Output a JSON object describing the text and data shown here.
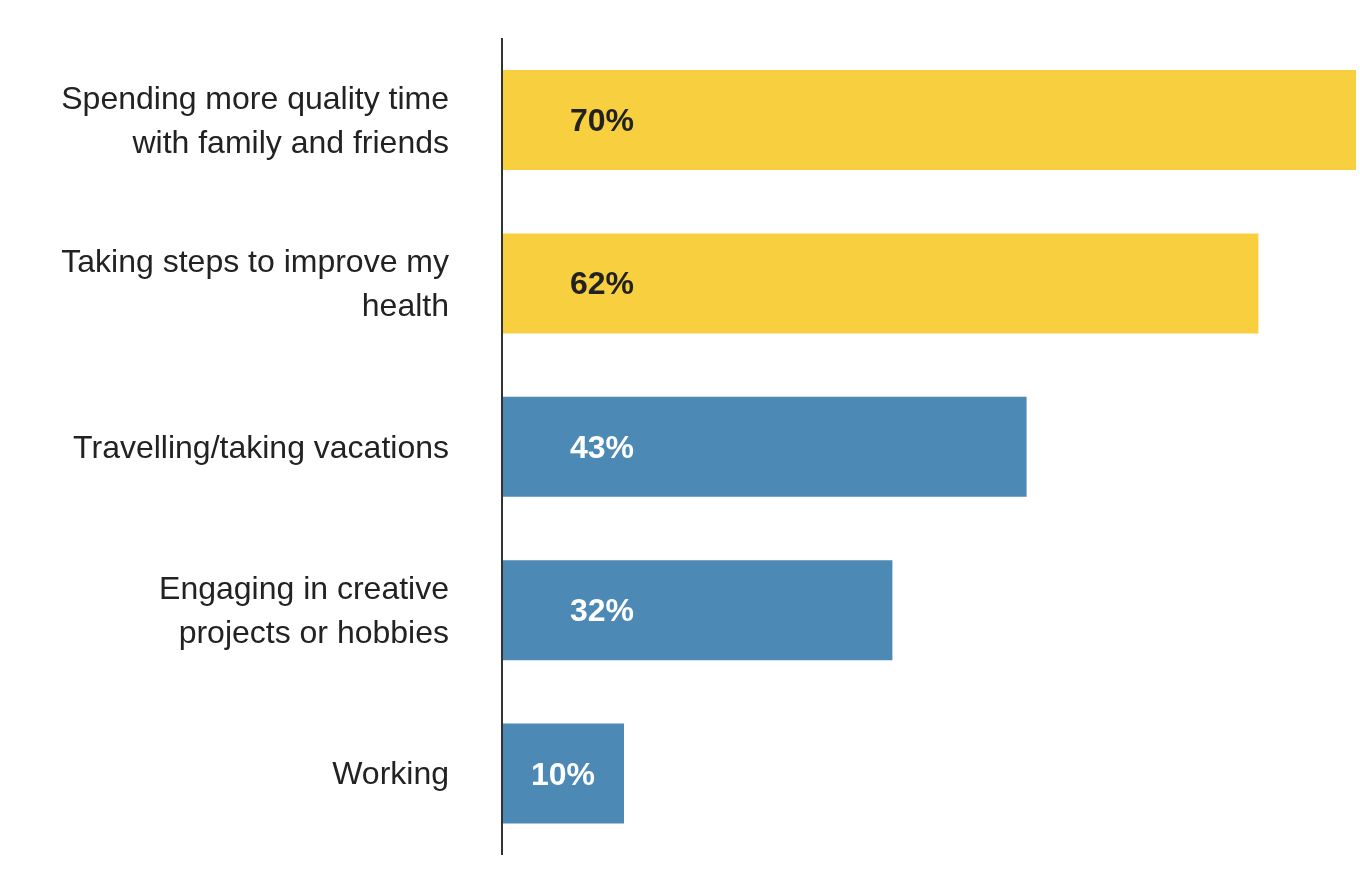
{
  "chart_data": {
    "type": "bar",
    "orientation": "horizontal",
    "tick_labels": "y",
    "data_labels": true,
    "legend": false,
    "grid": false,
    "categories": [
      "Spending more quality time with family and friends",
      "Taking steps to improve my health",
      "Travelling/taking vacations",
      "Engaging in creative projects or hobbies",
      "Working"
    ],
    "values": [
      70,
      62,
      43,
      32,
      10
    ],
    "colors": [
      "#f7cf3f",
      "#f7cf3f",
      "#4d89b5",
      "#4d89b5",
      "#4d89b5"
    ],
    "value_labels": [
      "70%",
      "62%",
      "43%",
      "32%",
      "10%"
    ]
  }
}
